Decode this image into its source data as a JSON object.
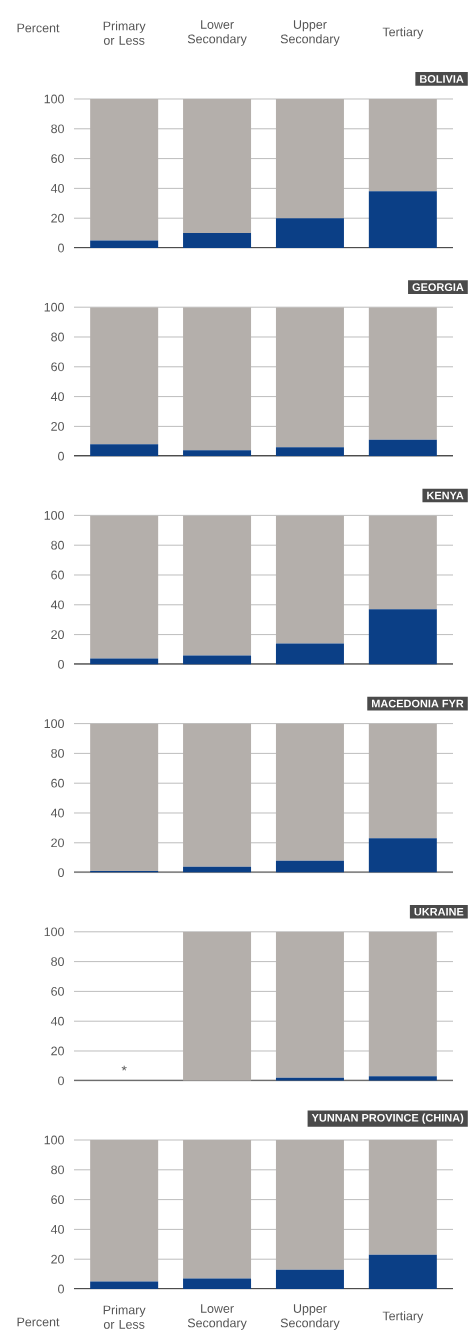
{
  "chart_data": [
    {
      "type": "bar",
      "stacked": true,
      "title": "BOLIVIA",
      "ylabel": "Percent",
      "categories": [
        "Primary or Less",
        "Lower Secondary",
        "Upper Secondary",
        "Tertiary"
      ],
      "series": [
        {
          "color": "#0b3f86",
          "values": [
            5,
            10,
            20,
            38
          ]
        },
        {
          "color": "#b4afab",
          "values": [
            95,
            90,
            80,
            62
          ]
        }
      ],
      "ylim": [
        0,
        100
      ],
      "yticks": [
        0,
        20,
        40,
        60,
        80,
        100
      ],
      "grid": "y"
    },
    {
      "type": "bar",
      "stacked": true,
      "title": "GEORGIA",
      "categories": [
        null,
        null,
        null,
        null
      ],
      "series": [
        {
          "color": "#0b3f86",
          "values": [
            8,
            4,
            6,
            11
          ]
        },
        {
          "color": "#b4afab",
          "values": [
            92,
            96,
            94,
            89
          ]
        }
      ],
      "ylim": [
        0,
        100
      ],
      "yticks": [
        0,
        20,
        40,
        60,
        80,
        100
      ],
      "grid": "y",
      "tick_labels": "y"
    },
    {
      "type": "bar",
      "stacked": true,
      "title": "KENYA",
      "categories": [
        null,
        null,
        null,
        null
      ],
      "series": [
        {
          "color": "#0b3f86",
          "values": [
            4,
            6,
            14,
            37
          ]
        },
        {
          "color": "#b4afab",
          "values": [
            96,
            94,
            86,
            63
          ]
        }
      ],
      "ylim": [
        0,
        100
      ],
      "yticks": [
        0,
        20,
        40,
        60,
        80,
        100
      ],
      "grid": "y",
      "tick_labels": "y"
    },
    {
      "type": "bar",
      "stacked": true,
      "title": "MACEDONIA FYR",
      "categories": [
        null,
        null,
        null,
        null
      ],
      "series": [
        {
          "color": "#0b3f86",
          "values": [
            1,
            4,
            8,
            23
          ]
        },
        {
          "color": "#b4afab",
          "values": [
            99,
            96,
            92,
            77
          ]
        }
      ],
      "ylim": [
        0,
        100
      ],
      "yticks": [
        0,
        20,
        40,
        60,
        80,
        100
      ],
      "grid": "y",
      "tick_labels": "y"
    },
    {
      "type": "bar",
      "stacked": true,
      "title": "UKRAINE",
      "categories": [
        null,
        null,
        null,
        null
      ],
      "series": [
        {
          "color": "#0b3f86",
          "values": [
            null,
            0,
            2,
            3
          ]
        },
        {
          "color": "#b4afab",
          "values": [
            null,
            100,
            98,
            97
          ]
        }
      ],
      "ylim": [
        0,
        100
      ],
      "yticks": [
        0,
        20,
        40,
        60,
        80,
        100
      ],
      "grid": "y",
      "tick_labels": "y",
      "annotations": [
        "*"
      ]
    },
    {
      "type": "bar",
      "stacked": true,
      "title": "YUNNAN PROVINCE (CHINA)",
      "ylabel": "Percent",
      "categories": [
        "Primary or Less",
        "Lower Secondary",
        "Upper Secondary",
        "Tertiary"
      ],
      "series": [
        {
          "color": "#0b3f86",
          "values": [
            5,
            7,
            13,
            23
          ]
        },
        {
          "color": "#b4afab",
          "values": [
            95,
            93,
            87,
            77
          ]
        }
      ],
      "ylim": [
        0,
        100
      ],
      "yticks": [
        0,
        20,
        40,
        60,
        80,
        100
      ],
      "grid": "y"
    }
  ]
}
